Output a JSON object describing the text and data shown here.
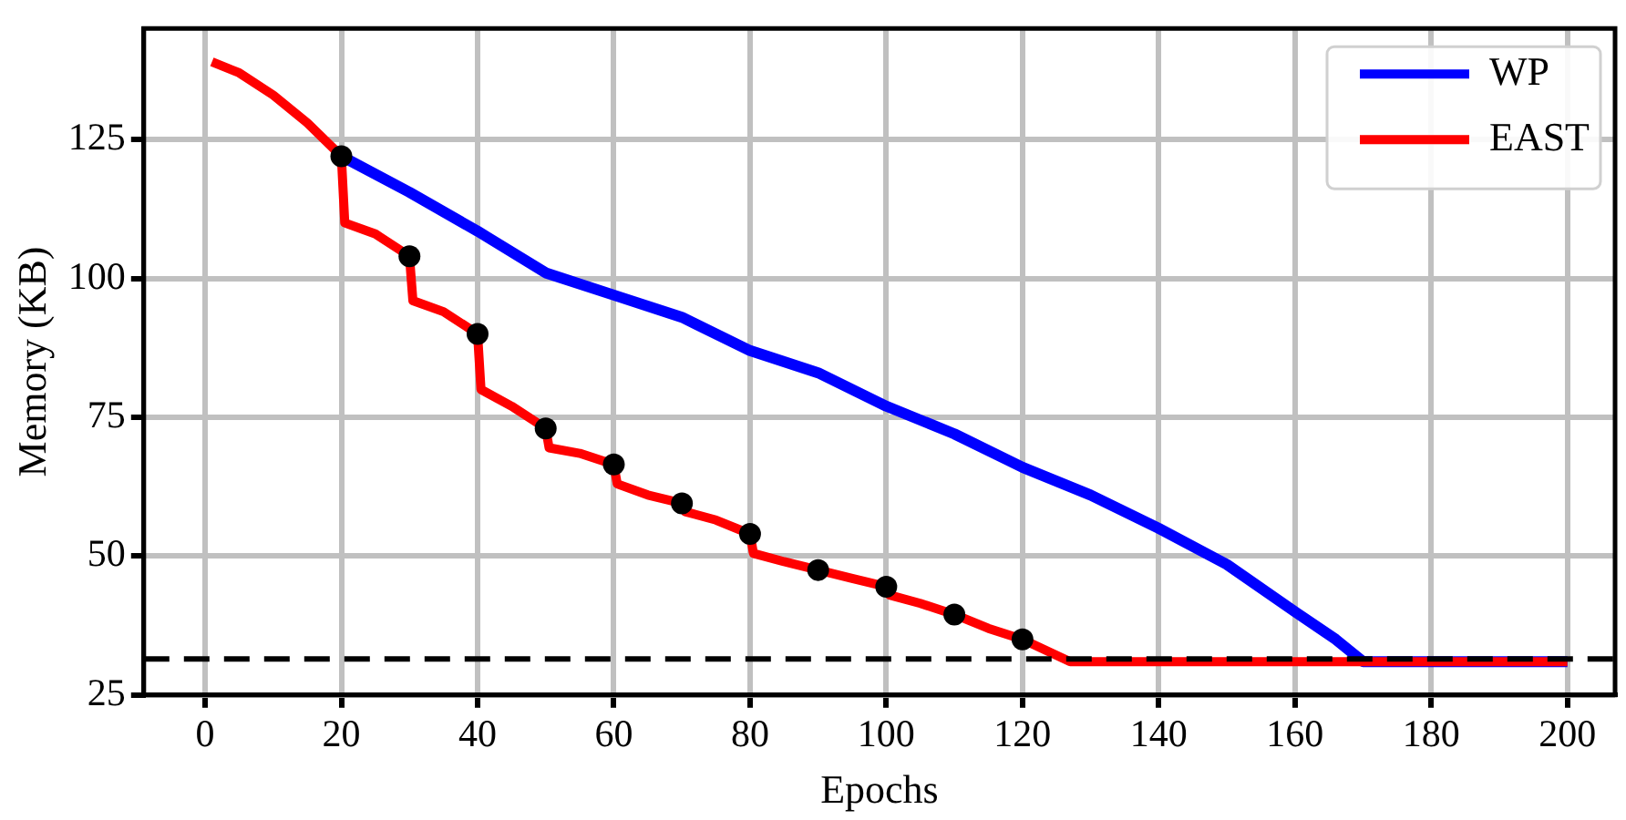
{
  "chart_data": {
    "type": "line",
    "xlabel": "Epochs",
    "ylabel": "Memory (KB)",
    "xlim": [
      -9,
      207
    ],
    "ylim": [
      25,
      145
    ],
    "xticks": [
      0,
      20,
      40,
      60,
      80,
      100,
      120,
      140,
      160,
      180,
      200
    ],
    "yticks": [
      25,
      50,
      75,
      100,
      125
    ],
    "grid": true,
    "legend": "top right",
    "series": [
      {
        "name": "WP",
        "color": "#0000ff",
        "x": [
          20,
          30,
          40,
          50,
          60,
          70,
          80,
          90,
          100,
          110,
          120,
          130,
          140,
          150,
          160,
          166,
          170,
          200
        ],
        "values": [
          122,
          115.5,
          108.5,
          101,
          97,
          93,
          87,
          83,
          77,
          72,
          66,
          61,
          55,
          48.5,
          40,
          35,
          31,
          31
        ]
      },
      {
        "name": "EAST",
        "color": "#ff0000",
        "x": [
          1,
          5,
          10,
          15,
          20,
          20.5,
          25,
          30,
          30.5,
          35,
          40,
          40.5,
          45,
          50,
          50.5,
          55,
          60,
          60.5,
          65,
          70,
          70.5,
          75,
          80,
          80.5,
          85,
          90,
          95,
          100,
          100.5,
          105,
          110,
          115,
          120,
          127,
          200
        ],
        "values": [
          139,
          137,
          133,
          128,
          122,
          110,
          108,
          104,
          96,
          94,
          90,
          80,
          77,
          73,
          69.5,
          68.5,
          66.5,
          63,
          61,
          59.5,
          58,
          56.5,
          54,
          50.5,
          49,
          47.5,
          46,
          44.5,
          43,
          41.5,
          39.5,
          37,
          35,
          31,
          31
        ]
      },
      {
        "type": "scatter",
        "color": "#000000",
        "marker": "circle",
        "x": [
          20,
          30,
          40,
          50,
          60,
          70,
          80,
          90,
          100,
          110,
          120
        ],
        "values": [
          122,
          104,
          90,
          73,
          66.5,
          59.5,
          54,
          47.5,
          44.5,
          39.5,
          35
        ]
      }
    ],
    "ref_lines": [
      {
        "axis": "y",
        "value": 31.5,
        "color": "#000000",
        "line_style": "dashed"
      }
    ]
  }
}
